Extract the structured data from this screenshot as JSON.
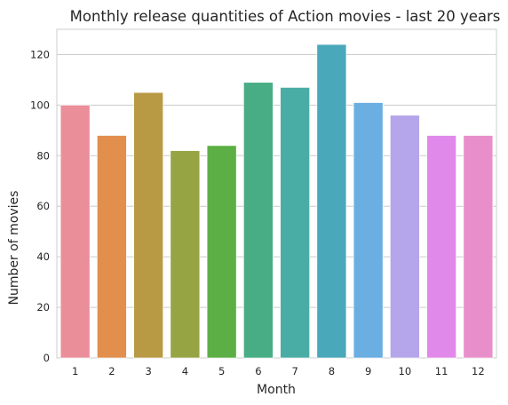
{
  "chart_data": {
    "type": "bar",
    "title": "Monthly release quantities of Action movies - last 20 years",
    "xlabel": "Month",
    "ylabel": "Number of movies",
    "categories": [
      "1",
      "2",
      "3",
      "4",
      "5",
      "6",
      "7",
      "8",
      "9",
      "10",
      "11",
      "12"
    ],
    "values": [
      100,
      88,
      105,
      82,
      84,
      109,
      107,
      124,
      101,
      96,
      88,
      88
    ],
    "ylim": [
      0,
      130
    ],
    "yticks": [
      "0",
      "20",
      "40",
      "60",
      "80",
      "100",
      "120"
    ],
    "grid": "horizontal",
    "colors": [
      "#ea8e9a",
      "#e28f4d",
      "#b99a44",
      "#97a444",
      "#5caf44",
      "#48ad84",
      "#4aada5",
      "#49a8b9",
      "#6aaee2",
      "#b5a5ea",
      "#e189ea",
      "#e88fcb"
    ]
  }
}
